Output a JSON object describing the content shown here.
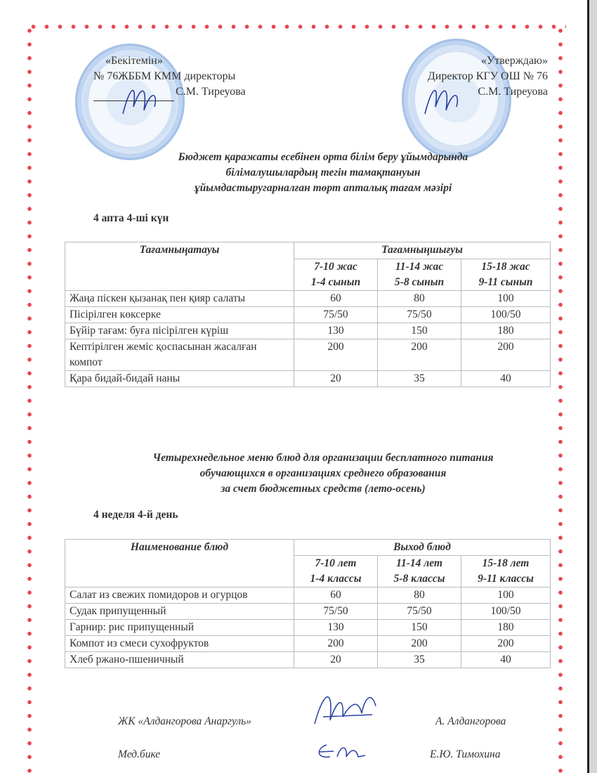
{
  "approval_left": {
    "label": "«Бекітемін»",
    "position": "№ 76ЖББМ КММ директоры",
    "name": "С.М. Тиреуова"
  },
  "approval_right": {
    "label": "«Утверждаю»",
    "position": "Директор КГУ ОШ № 76",
    "name": "С.М. Тиреуова"
  },
  "kz": {
    "title_lines": [
      "Бюджет қаражаты есебінен орта білім беру ұйымдарында",
      "білімалушылардың тегін тамақтануын",
      "ұйымдастыругарналған төрт апталық тағам мәзірі"
    ],
    "day": "4 апта 4-ші күн",
    "table": {
      "col_name": "Тағамныңатауы",
      "col_output": "Тағамныңшығуы",
      "groups": [
        [
          "7-10 жас",
          "1-4 сынып"
        ],
        [
          "11-14 жас",
          "5-8 сынып"
        ],
        [
          "15-18 жас",
          "9-11 сынып"
        ]
      ],
      "rows": [
        [
          "Жаңа піскен қызанақ пен қияр салаты",
          "60",
          "80",
          "100"
        ],
        [
          "Пісірілген көксерке",
          "75/50",
          "75/50",
          "100/50"
        ],
        [
          "Бүйір тағам: буға пісірілген күріш",
          "130",
          "150",
          "180"
        ],
        [
          "Кептірілген жеміс қоспасынан жасалған компот",
          "200",
          "200",
          "200"
        ],
        [
          "Қара бидай-бидай наны",
          "20",
          "35",
          "40"
        ]
      ]
    }
  },
  "ru": {
    "title_lines": [
      "Четырехнедельное меню блюд для организации бесплатного питания",
      "обучающихся в организациях среднего образования",
      "за счет бюджетных средств (лето-осень)"
    ],
    "day": "4 неделя 4-й день",
    "table": {
      "col_name": "Наименование блюд",
      "col_output": "Выход блюд",
      "groups": [
        [
          "7-10 лет",
          "1-4 классы"
        ],
        [
          "11-14 лет",
          "5-8 классы"
        ],
        [
          "15-18 лет",
          "9-11 классы"
        ]
      ],
      "rows": [
        [
          "Салат из свежих помидоров и огурцов",
          "60",
          "80",
          "100"
        ],
        [
          "Судак припущенный",
          "75/50",
          "75/50",
          "100/50"
        ],
        [
          "Гарнир: рис припущенный",
          "130",
          "150",
          "180"
        ],
        [
          "Компот из смеси сухофруктов",
          "200",
          "200",
          "200"
        ],
        [
          "Хлеб ржано-пшеничный",
          "20",
          "35",
          "40"
        ]
      ]
    }
  },
  "footer": {
    "supplier": "ЖК «Алдангорова Анаргуль»",
    "supplier_name": "А. Алдангорова",
    "nurse": "Мед.бике",
    "nurse_name": "Е.Ю. Тимохина"
  },
  "colors": {
    "border_dots": "#e8464f",
    "stamp": "#5a8cd2",
    "signature": "#2a3fa0"
  }
}
